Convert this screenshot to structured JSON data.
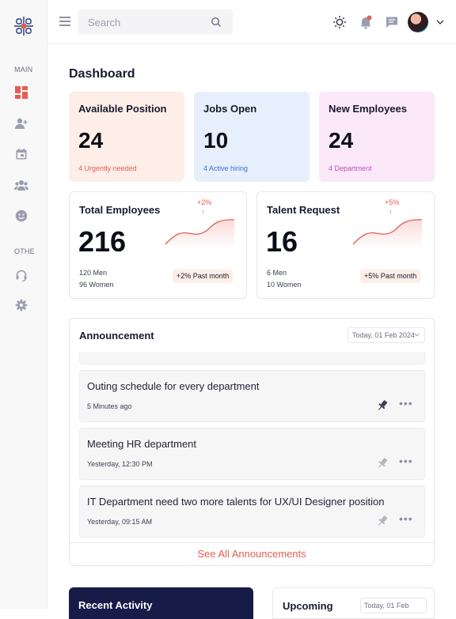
{
  "sidebar": {
    "main_label": "MAIN",
    "other_label": "OTHE"
  },
  "topbar": {
    "search_placeholder": "Search"
  },
  "colors": {
    "accent": "#e35d54",
    "navy": "#161b47",
    "card_peach": "#fdeee7",
    "card_blue": "#e7effc",
    "card_pink": "#fbe9f9"
  },
  "dashboard": {
    "title": "Dashboard",
    "stat_cards": [
      {
        "title": "Available Position",
        "value": "24",
        "sub": "4 Urgently needed",
        "bg": "#fdeee7",
        "sub_color": "#e35d54"
      },
      {
        "title": "Jobs Open",
        "value": "10",
        "sub": "4 Active hiring",
        "bg": "#e7effc",
        "sub_color": "#3b6fd9"
      },
      {
        "title": "New Employees",
        "value": "24",
        "sub": "4 Department",
        "bg": "#fbe9f9",
        "sub_color": "#c14fb8"
      }
    ],
    "total_employees": {
      "title": "Total Employees",
      "value": "216",
      "men": "120 Men",
      "women": "96 Women",
      "pct": "+2%",
      "arrow": "↑",
      "badge": "+2% Past month"
    },
    "talent_request": {
      "title": "Talent Request",
      "value": "16",
      "men": "6 Men",
      "women": "10 Women",
      "pct": "+5%",
      "arrow": "↑",
      "badge": "+5% Past month"
    }
  },
  "announcement": {
    "title": "Announcement",
    "date": "Today, 01 Feb 2024",
    "items": [
      {
        "title": "Outing schedule for every department",
        "time": "5 Minutes ago",
        "pinned": true
      },
      {
        "title": "Meeting HR department",
        "time": "Yesterday, 12:30 PM",
        "pinned": false
      },
      {
        "title": "IT Department need two more talents for UX/UI Designer position",
        "time": "Yesterday, 09:15 AM",
        "pinned": false
      }
    ],
    "see_all": "See All Announcements"
  },
  "recent_activity": {
    "title": "Recent Activity"
  },
  "upcoming": {
    "title": "Upcoming",
    "date": "Today, 01 Feb"
  }
}
